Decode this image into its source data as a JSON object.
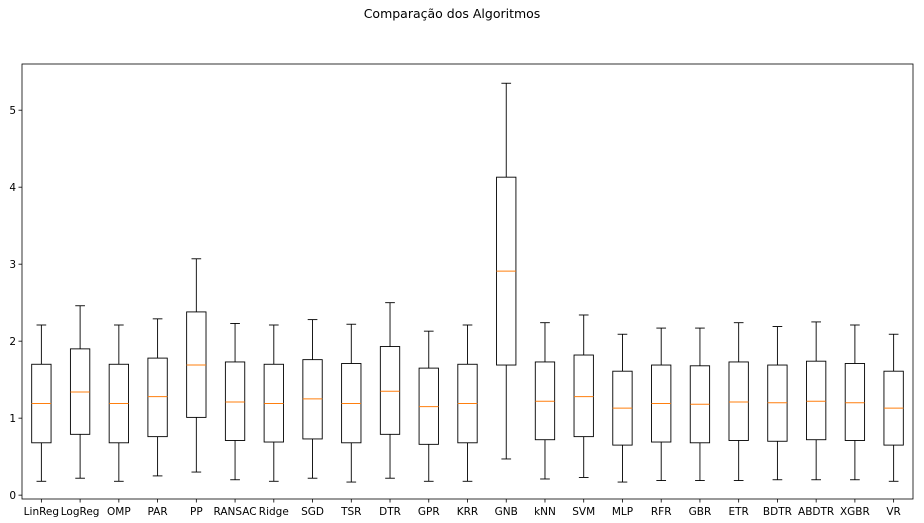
{
  "chart_data": {
    "type": "boxplot",
    "title": "Comparação dos Algoritmos",
    "xlabel": "",
    "ylabel": "",
    "ylim": [
      -0.05,
      5.6
    ],
    "yticks": [
      0,
      1,
      2,
      3,
      4,
      5
    ],
    "grid": false,
    "box_color": "#000000",
    "median_color": "#ff7f0e",
    "categories": [
      "LinReg",
      "LogReg",
      "OMP",
      "PAR",
      "PP",
      "RANSAC",
      "Ridge",
      "SGD",
      "TSR",
      "DTR",
      "GPR",
      "KRR",
      "GNB",
      "kNN",
      "SVM",
      "MLP",
      "RFR",
      "GBR",
      "ETR",
      "BDTR",
      "ABDTR",
      "XGBR",
      "VR"
    ],
    "boxes": [
      {
        "whislo": 0.18,
        "q1": 0.68,
        "med": 1.19,
        "q3": 1.7,
        "whishi": 2.21
      },
      {
        "whislo": 0.22,
        "q1": 0.79,
        "med": 1.34,
        "q3": 1.9,
        "whishi": 2.46
      },
      {
        "whislo": 0.18,
        "q1": 0.68,
        "med": 1.19,
        "q3": 1.7,
        "whishi": 2.21
      },
      {
        "whislo": 0.25,
        "q1": 0.76,
        "med": 1.28,
        "q3": 1.78,
        "whishi": 2.29
      },
      {
        "whislo": 0.3,
        "q1": 1.01,
        "med": 1.69,
        "q3": 2.38,
        "whishi": 3.07
      },
      {
        "whislo": 0.2,
        "q1": 0.71,
        "med": 1.21,
        "q3": 1.73,
        "whishi": 2.23
      },
      {
        "whislo": 0.18,
        "q1": 0.69,
        "med": 1.19,
        "q3": 1.7,
        "whishi": 2.21
      },
      {
        "whislo": 0.22,
        "q1": 0.73,
        "med": 1.25,
        "q3": 1.76,
        "whishi": 2.28
      },
      {
        "whislo": 0.17,
        "q1": 0.68,
        "med": 1.19,
        "q3": 1.71,
        "whishi": 2.22
      },
      {
        "whislo": 0.22,
        "q1": 0.79,
        "med": 1.35,
        "q3": 1.93,
        "whishi": 2.5
      },
      {
        "whislo": 0.18,
        "q1": 0.66,
        "med": 1.15,
        "q3": 1.65,
        "whishi": 2.13
      },
      {
        "whislo": 0.18,
        "q1": 0.68,
        "med": 1.19,
        "q3": 1.7,
        "whishi": 2.21
      },
      {
        "whislo": 0.47,
        "q1": 1.69,
        "med": 2.91,
        "q3": 4.13,
        "whishi": 5.35
      },
      {
        "whislo": 0.21,
        "q1": 0.72,
        "med": 1.22,
        "q3": 1.73,
        "whishi": 2.24
      },
      {
        "whislo": 0.23,
        "q1": 0.76,
        "med": 1.28,
        "q3": 1.82,
        "whishi": 2.34
      },
      {
        "whislo": 0.17,
        "q1": 0.65,
        "med": 1.13,
        "q3": 1.61,
        "whishi": 2.09
      },
      {
        "whislo": 0.19,
        "q1": 0.69,
        "med": 1.19,
        "q3": 1.69,
        "whishi": 2.17
      },
      {
        "whislo": 0.19,
        "q1": 0.68,
        "med": 1.18,
        "q3": 1.68,
        "whishi": 2.17
      },
      {
        "whislo": 0.19,
        "q1": 0.71,
        "med": 1.21,
        "q3": 1.73,
        "whishi": 2.24
      },
      {
        "whislo": 0.2,
        "q1": 0.7,
        "med": 1.2,
        "q3": 1.69,
        "whishi": 2.19
      },
      {
        "whislo": 0.2,
        "q1": 0.72,
        "med": 1.22,
        "q3": 1.74,
        "whishi": 2.25
      },
      {
        "whislo": 0.2,
        "q1": 0.71,
        "med": 1.2,
        "q3": 1.71,
        "whishi": 2.21
      },
      {
        "whislo": 0.18,
        "q1": 0.65,
        "med": 1.13,
        "q3": 1.61,
        "whishi": 2.09
      }
    ]
  }
}
